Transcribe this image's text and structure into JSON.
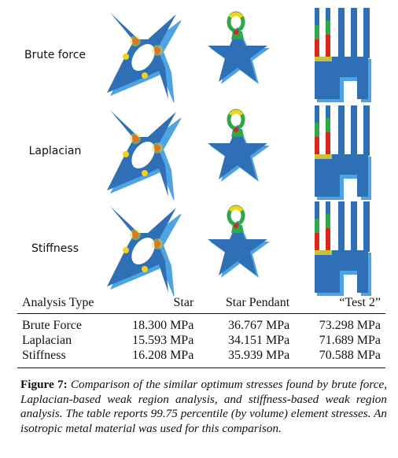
{
  "figure": {
    "row_labels": [
      "Brute force",
      "Laplacian",
      "Stiffness"
    ],
    "colors": {
      "base_blue": "#2f6fb5",
      "edge_blue": "#4fa3e0",
      "stress_green": "#2ea84a",
      "stress_yellow": "#f2d21b",
      "stress_red": "#d9281a"
    }
  },
  "table": {
    "headers": [
      "Analysis Type",
      "Star",
      "Star Pendant",
      "“Test 2”"
    ],
    "rows": [
      [
        "Brute Force",
        "18.300 MPa",
        "36.767 MPa",
        "73.298 MPa"
      ],
      [
        "Laplacian",
        "15.593 MPa",
        "34.151 MPa",
        "71.689 MPa"
      ],
      [
        "Stiffness",
        "16.208 MPa",
        "35.939 MPa",
        "70.588 MPa"
      ]
    ]
  },
  "caption": {
    "label": "Figure 7:",
    "text": "Comparison of the similar optimum stresses found by brute force, Laplacian-based weak region analysis, and stiffness-based weak region analysis. The table reports 99.75 percentile (by volume) element stresses. An isotropic metal material was used for this comparison."
  }
}
